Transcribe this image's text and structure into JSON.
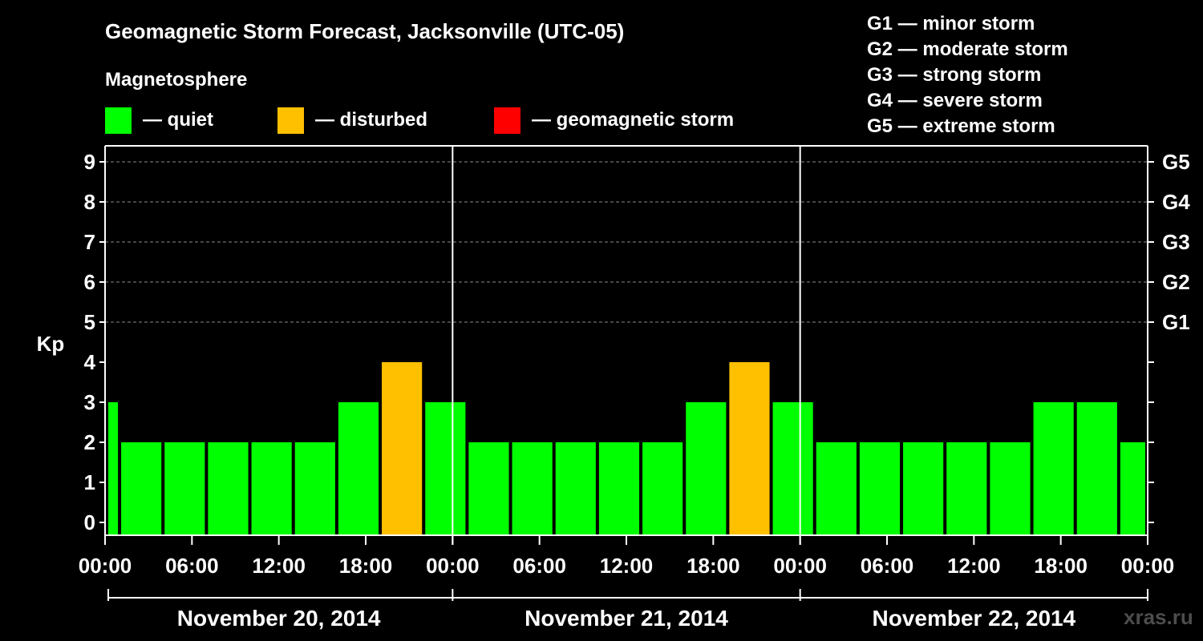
{
  "title": "Geomagnetic Storm Forecast, Jacksonville (UTC-05)",
  "magnetosphere_label": "Magnetosphere",
  "legend": [
    {
      "label": "— quiet",
      "color": "#00ff00"
    },
    {
      "label": "— disturbed",
      "color": "#ffc000"
    },
    {
      "label": "— geomagnetic storm",
      "color": "#ff0000"
    }
  ],
  "g_levels": [
    "G1 — minor storm",
    "G2 — moderate storm",
    "G3 — strong storm",
    "G4 — severe storm",
    "G5 — extreme storm"
  ],
  "watermark": "xras.ru",
  "chart_data": {
    "type": "bar",
    "ylabel": "Kp",
    "ylim": [
      0,
      9
    ],
    "y_ticks": [
      "0",
      "1",
      "2",
      "3",
      "4",
      "5",
      "6",
      "7",
      "8",
      "9"
    ],
    "right_ticks": [
      {
        "kp": 5,
        "label": "G1"
      },
      {
        "kp": 6,
        "label": "G2"
      },
      {
        "kp": 7,
        "label": "G3"
      },
      {
        "kp": 8,
        "label": "G4"
      },
      {
        "kp": 9,
        "label": "G5"
      }
    ],
    "grid": "horizontal dashed at Kp 5-9",
    "x_tick_labels": [
      "00:00",
      "06:00",
      "12:00",
      "18:00",
      "00:00",
      "06:00",
      "12:00",
      "18:00",
      "00:00",
      "06:00",
      "12:00",
      "18:00",
      "00:00"
    ],
    "days": [
      "November 20, 2014",
      "November 21, 2014",
      "November 22, 2014"
    ],
    "interval_hours": 3,
    "bars": [
      {
        "start_hour": 0,
        "end_hour": 1,
        "kp": 3
      },
      {
        "start_hour": 1,
        "end_hour": 4,
        "kp": 2
      },
      {
        "start_hour": 4,
        "end_hour": 7,
        "kp": 2
      },
      {
        "start_hour": 7,
        "end_hour": 10,
        "kp": 2
      },
      {
        "start_hour": 10,
        "end_hour": 13,
        "kp": 2
      },
      {
        "start_hour": 13,
        "end_hour": 16,
        "kp": 2
      },
      {
        "start_hour": 16,
        "end_hour": 19,
        "kp": 3
      },
      {
        "start_hour": 19,
        "end_hour": 22,
        "kp": 4
      },
      {
        "start_hour": 22,
        "end_hour": 25,
        "kp": 3
      },
      {
        "start_hour": 25,
        "end_hour": 28,
        "kp": 2
      },
      {
        "start_hour": 28,
        "end_hour": 31,
        "kp": 2
      },
      {
        "start_hour": 31,
        "end_hour": 34,
        "kp": 2
      },
      {
        "start_hour": 34,
        "end_hour": 37,
        "kp": 2
      },
      {
        "start_hour": 37,
        "end_hour": 40,
        "kp": 2
      },
      {
        "start_hour": 40,
        "end_hour": 43,
        "kp": 3
      },
      {
        "start_hour": 43,
        "end_hour": 46,
        "kp": 4
      },
      {
        "start_hour": 46,
        "end_hour": 49,
        "kp": 3
      },
      {
        "start_hour": 49,
        "end_hour": 52,
        "kp": 2
      },
      {
        "start_hour": 52,
        "end_hour": 55,
        "kp": 2
      },
      {
        "start_hour": 55,
        "end_hour": 58,
        "kp": 2
      },
      {
        "start_hour": 58,
        "end_hour": 61,
        "kp": 2
      },
      {
        "start_hour": 61,
        "end_hour": 64,
        "kp": 2
      },
      {
        "start_hour": 64,
        "end_hour": 67,
        "kp": 3
      },
      {
        "start_hour": 67,
        "end_hour": 70,
        "kp": 3
      },
      {
        "start_hour": 70,
        "end_hour": 72,
        "kp": 2
      }
    ]
  }
}
